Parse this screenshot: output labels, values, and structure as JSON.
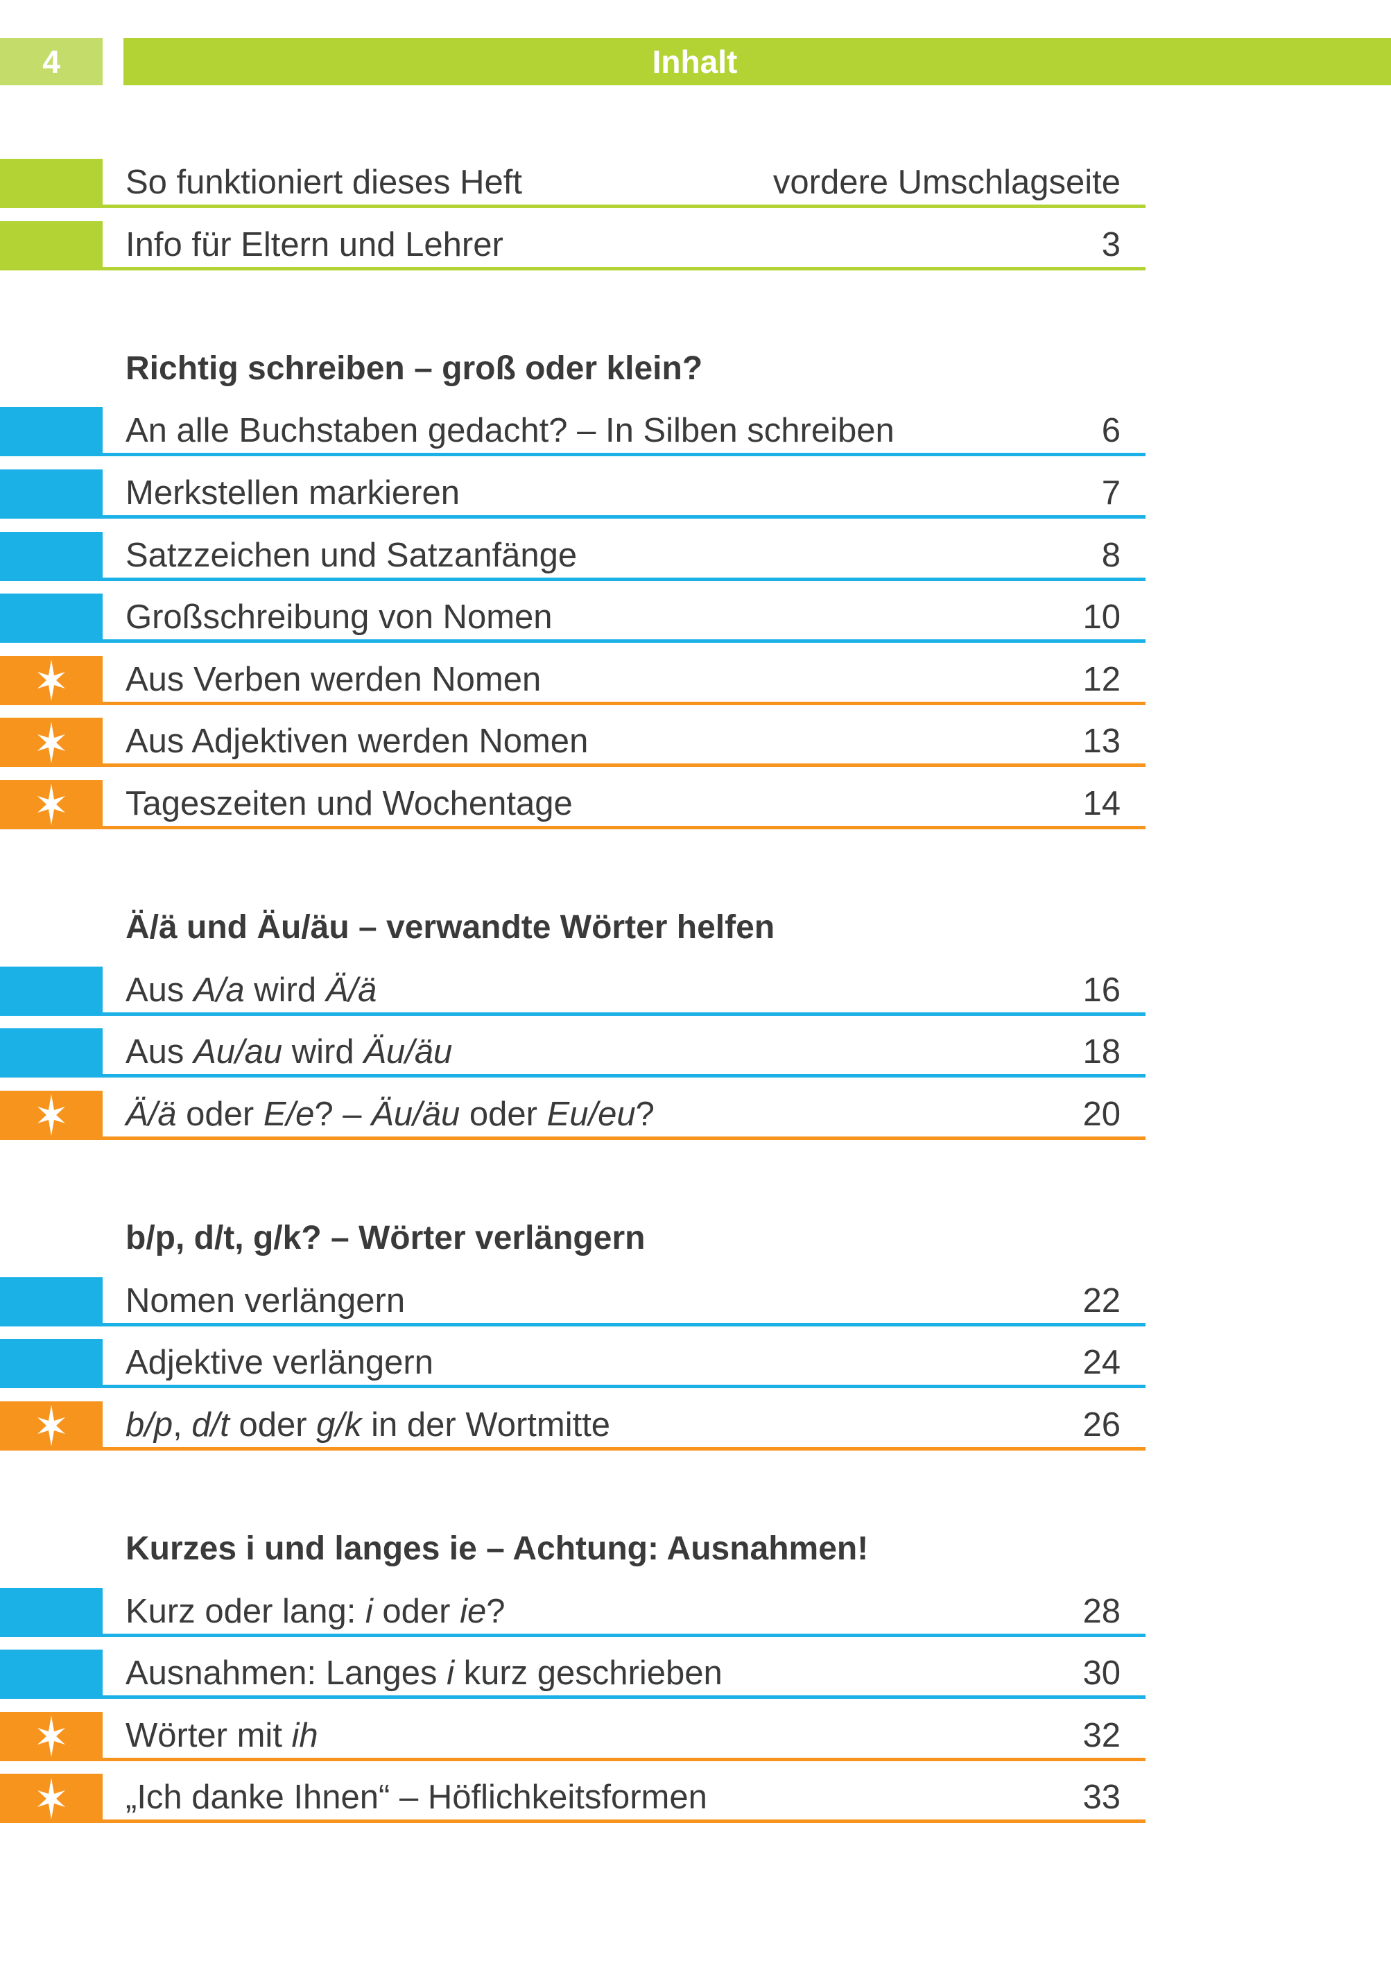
{
  "header": {
    "page_number": "4",
    "title": "Inhalt"
  },
  "colors": {
    "green": "#b3d335",
    "light_green": "#c3dc6a",
    "blue": "#1bb0e6",
    "orange": "#f7941d",
    "text": "#3a3a3a"
  },
  "sections": [
    {
      "heading": "",
      "entries": [
        {
          "type": "green",
          "segments": [
            {
              "t": "So funktioniert dieses Heft"
            }
          ],
          "page": "vordere Umschlagseite"
        },
        {
          "type": "green",
          "segments": [
            {
              "t": "Info für Eltern und Lehrer"
            }
          ],
          "page": "3"
        }
      ]
    },
    {
      "heading": "Richtig schreiben – groß oder klein?",
      "entries": [
        {
          "type": "blue",
          "segments": [
            {
              "t": "An alle Buchstaben gedacht? – In Silben schreiben"
            }
          ],
          "page": "6"
        },
        {
          "type": "blue",
          "segments": [
            {
              "t": "Merkstellen markieren"
            }
          ],
          "page": "7"
        },
        {
          "type": "blue",
          "segments": [
            {
              "t": "Satzzeichen und Satzanfänge"
            }
          ],
          "page": "8"
        },
        {
          "type": "blue",
          "segments": [
            {
              "t": "Großschreibung von Nomen"
            }
          ],
          "page": "10"
        },
        {
          "type": "star",
          "icon": "star-icon",
          "segments": [
            {
              "t": "Aus Verben werden Nomen"
            }
          ],
          "page": "12"
        },
        {
          "type": "star",
          "icon": "star-icon",
          "segments": [
            {
              "t": "Aus Adjektiven werden Nomen"
            }
          ],
          "page": "13"
        },
        {
          "type": "star",
          "icon": "star-icon",
          "segments": [
            {
              "t": "Tageszeiten und Wochentage"
            }
          ],
          "page": "14"
        }
      ]
    },
    {
      "heading": "Ä/ä und Äu/äu – verwandte Wörter helfen",
      "entries": [
        {
          "type": "blue",
          "segments": [
            {
              "t": "Aus "
            },
            {
              "t": "A/a",
              "i": true
            },
            {
              "t": " wird "
            },
            {
              "t": "Ä/ä",
              "i": true
            }
          ],
          "page": "16"
        },
        {
          "type": "blue",
          "segments": [
            {
              "t": "Aus "
            },
            {
              "t": "Au/au",
              "i": true
            },
            {
              "t": " wird "
            },
            {
              "t": "Äu/äu",
              "i": true
            }
          ],
          "page": "18"
        },
        {
          "type": "star",
          "icon": "star-icon",
          "segments": [
            {
              "t": "Ä/ä",
              "i": true
            },
            {
              "t": " oder "
            },
            {
              "t": "E/e",
              "i": true
            },
            {
              "t": "? – "
            },
            {
              "t": "Äu/äu",
              "i": true
            },
            {
              "t": " oder "
            },
            {
              "t": "Eu/eu",
              "i": true
            },
            {
              "t": "?"
            }
          ],
          "page": "20"
        }
      ]
    },
    {
      "heading": "b/p, d/t, g/k? – Wörter verlängern",
      "entries": [
        {
          "type": "blue",
          "segments": [
            {
              "t": "Nomen verlängern"
            }
          ],
          "page": "22"
        },
        {
          "type": "blue",
          "segments": [
            {
              "t": "Adjektive verlängern"
            }
          ],
          "page": "24"
        },
        {
          "type": "star",
          "icon": "star-icon",
          "segments": [
            {
              "t": "b/p",
              "i": true
            },
            {
              "t": ", "
            },
            {
              "t": "d/t",
              "i": true
            },
            {
              "t": " oder "
            },
            {
              "t": "g/k",
              "i": true
            },
            {
              "t": " in der Wortmitte"
            }
          ],
          "page": "26"
        }
      ]
    },
    {
      "heading": "Kurzes i und langes ie – Achtung: Ausnahmen!",
      "entries": [
        {
          "type": "blue",
          "segments": [
            {
              "t": "Kurz oder lang: "
            },
            {
              "t": "i",
              "i": true
            },
            {
              "t": " oder "
            },
            {
              "t": "ie",
              "i": true
            },
            {
              "t": "?"
            }
          ],
          "page": "28"
        },
        {
          "type": "blue",
          "segments": [
            {
              "t": "Ausnahmen: Langes "
            },
            {
              "t": "i",
              "i": true
            },
            {
              "t": " kurz geschrieben"
            }
          ],
          "page": "30"
        },
        {
          "type": "star",
          "icon": "star-icon",
          "segments": [
            {
              "t": "Wörter mit "
            },
            {
              "t": "ih",
              "i": true
            }
          ],
          "page": "32"
        },
        {
          "type": "star",
          "icon": "star-icon",
          "segments": [
            {
              "t": "„Ich danke Ihnen“ – Höflichkeitsformen"
            }
          ],
          "page": "33"
        }
      ]
    }
  ]
}
